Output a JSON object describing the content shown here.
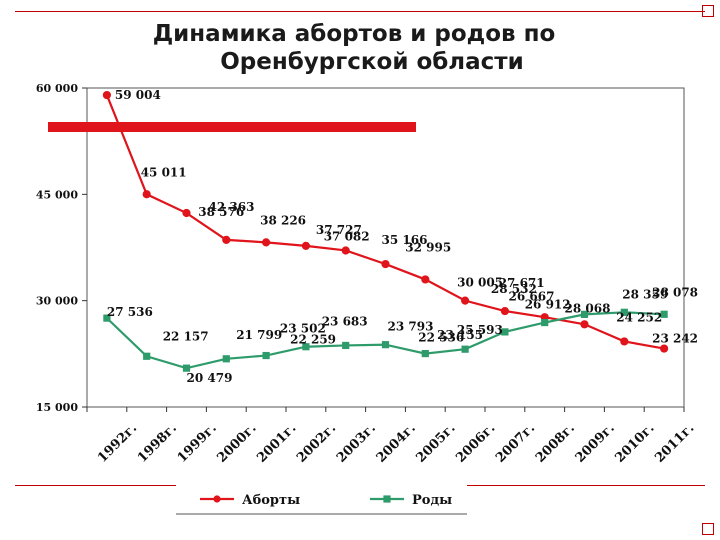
{
  "title": {
    "line1": "Динамика абортов и родов по",
    "line2": "Оренбургской области"
  },
  "chart_data": {
    "type": "line",
    "categories": [
      "1992г.",
      "1998г.",
      "1999г.",
      "2000г.",
      "2001г.",
      "2002г.",
      "2003г.",
      "2004г.",
      "2005г.",
      "2006г.",
      "2007г.",
      "2008г.",
      "2009г.",
      "2010г.",
      "2011г."
    ],
    "series": [
      {
        "name": "Аборты",
        "values": [
          59004,
          45011,
          42363,
          38576,
          38226,
          37727,
          37082,
          35166,
          32995,
          30005,
          28532,
          27671,
          26667,
          24252,
          23242
        ],
        "labels": [
          "59 004",
          "45 011",
          "42 363",
          "38 576",
          "38 226",
          "37 727",
          "37 082",
          "35 166",
          "32 995",
          "30 005",
          "28 532",
          "27 671",
          "26 667",
          "24 252",
          "23 242"
        ],
        "color": "#e0141b",
        "marker": "circle"
      },
      {
        "name": "Роды",
        "values": [
          27536,
          22157,
          20479,
          21799,
          22259,
          23502,
          23683,
          23793,
          22536,
          23155,
          25593,
          26912,
          28068,
          28359,
          28078
        ],
        "labels": [
          "27 536",
          "22 157",
          "20 479",
          "21 799",
          "22 259",
          "23 502",
          "23 683",
          "23 793",
          "22 536",
          "23 155",
          "25 593",
          "26 912",
          "28 068",
          "28 359",
          "28 078"
        ],
        "color": "#2e9b6b",
        "marker": "square"
      }
    ],
    "ylim": [
      15000,
      60000
    ],
    "yticks": [
      15000,
      30000,
      45000,
      60000
    ],
    "ytick_labels": [
      "15 000",
      "30 000",
      "45 000",
      "60 000"
    ],
    "grid": false,
    "legend_position": "bottom"
  }
}
